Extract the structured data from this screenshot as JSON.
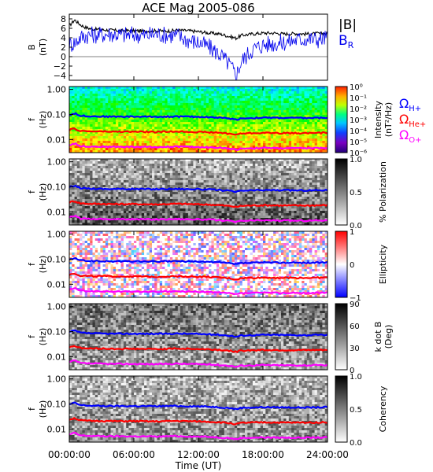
{
  "chart_data": {
    "title": "ACE Mag 2005-086",
    "x_ticks": [
      "00:00:00",
      "06:00:00",
      "12:00:00",
      "18:00:00",
      "24:00:00"
    ],
    "x_label": "Time (UT)",
    "xlim_hours": [
      0,
      24
    ],
    "colors": {
      "b_total": "#000000",
      "b_r": "#0000ee",
      "h_plus": "#0000ff",
      "he_plus": "#ff0000",
      "o_plus": "#ff00ff"
    },
    "panels": [
      {
        "id": "field",
        "type": "line",
        "ylabel": "B",
        "yunit": "(nT)",
        "ylim": [
          -5,
          9
        ],
        "yticks": [
          "8",
          "6",
          "4",
          "2",
          "0",
          "−2",
          "−4"
        ],
        "legend": {
          "total": "|B|",
          "radial": "B",
          "radial_sub": "R"
        },
        "series": [
          {
            "name": "|B|",
            "x_hours": [
              0,
              0.5,
              1,
              1.5,
              2,
              3,
              4,
              5,
              6,
              7,
              8,
              9,
              10,
              11,
              12,
              13,
              14,
              15,
              15.5,
              16,
              17,
              18,
              19,
              20,
              21,
              22,
              23,
              24
            ],
            "values": [
              6.5,
              7.8,
              6.8,
              6.2,
              5.9,
              5.7,
              5.6,
              5.5,
              5.5,
              5.4,
              5.5,
              5.4,
              5.6,
              5.5,
              5.3,
              5.0,
              4.8,
              4.2,
              3.9,
              4.5,
              4.8,
              5.0,
              5.0,
              4.8,
              4.9,
              4.8,
              4.9,
              4.9
            ]
          },
          {
            "name": "BR",
            "x_hours": [
              0,
              0.5,
              1,
              1.5,
              2,
              3,
              4,
              5,
              6,
              7,
              8,
              9,
              10,
              11,
              12,
              13,
              14,
              15,
              15.5,
              16,
              17,
              18,
              19,
              20,
              21,
              22,
              23,
              24
            ],
            "values": [
              2.5,
              3.0,
              4.0,
              4.5,
              4.6,
              4.7,
              4.8,
              4.6,
              4.7,
              4.5,
              4.8,
              4.6,
              4.5,
              3.5,
              3.0,
              2.0,
              0.5,
              -2.0,
              -4.0,
              -1.0,
              1.5,
              2.5,
              2.8,
              3.0,
              3.5,
              3.8,
              3.6,
              4.0
            ]
          }
        ]
      },
      {
        "id": "intensity",
        "type": "heatmap",
        "ylabel": "f",
        "yunit": "(Hz)",
        "yticks": [
          "1.00",
          "0.10",
          "0.01"
        ],
        "ylim": [
          0.003,
          1.3
        ],
        "colorbar": {
          "scale": "rainbow",
          "label": "Intensity",
          "unit": "(nT²/Hz)",
          "ticks": [
            "10⁰",
            "10⁻¹",
            "10⁻²",
            "10⁻³",
            "10⁻⁴",
            "10⁻⁵",
            "10⁻⁶"
          ]
        },
        "gyro_labels": [
          {
            "text": "Ω",
            "sub": "H+"
          },
          {
            "text": "Ω",
            "sub": "He+"
          },
          {
            "text": "Ω",
            "sub": "O+"
          }
        ]
      },
      {
        "id": "polarization",
        "type": "heatmap",
        "ylabel": "f",
        "yunit": "(Hz)",
        "yticks": [
          "1.00",
          "0.10",
          "0.01"
        ],
        "ylim": [
          0.003,
          1.3
        ],
        "colorbar": {
          "scale": "gray",
          "label": "% Polarization",
          "unit": "",
          "ticks": [
            "1.0",
            "0.5",
            "0.0"
          ]
        }
      },
      {
        "id": "ellipticity",
        "type": "heatmap",
        "ylabel": "f",
        "yunit": "(Hz)",
        "yticks": [
          "1.00",
          "0.10",
          "0.01"
        ],
        "ylim": [
          0.003,
          1.3
        ],
        "colorbar": {
          "scale": "bwr",
          "label": "Ellipticity",
          "unit": "",
          "ticks": [
            "1",
            "0",
            "−1"
          ]
        }
      },
      {
        "id": "kdotb",
        "type": "heatmap",
        "ylabel": "f",
        "yunit": "(Hz)",
        "yticks": [
          "1.00",
          "0.10",
          "0.01"
        ],
        "ylim": [
          0.003,
          1.3
        ],
        "colorbar": {
          "scale": "gray",
          "label": "k dot B",
          "unit": "(Deg)",
          "ticks": [
            "90",
            "60",
            "30",
            "0"
          ]
        }
      },
      {
        "id": "coherency",
        "type": "heatmap",
        "ylabel": "f",
        "yunit": "(Hz)",
        "yticks": [
          "1.00",
          "0.10",
          "0.01"
        ],
        "ylim": [
          0.003,
          1.3
        ],
        "colorbar": {
          "scale": "gray",
          "label": "Coherency",
          "unit": "",
          "ticks": [
            "1.0",
            "0.5",
            "0.0"
          ]
        }
      }
    ],
    "gyrofrequency_hz": {
      "x_hours": [
        0,
        0.5,
        1,
        2,
        3,
        4,
        6,
        8,
        10,
        12,
        13,
        14,
        15,
        15.5,
        16,
        18,
        20,
        22,
        24
      ],
      "H+": [
        0.095,
        0.11,
        0.09,
        0.085,
        0.083,
        0.082,
        0.082,
        0.081,
        0.083,
        0.08,
        0.078,
        0.074,
        0.068,
        0.062,
        0.07,
        0.074,
        0.073,
        0.072,
        0.074
      ],
      "He+": [
        0.024,
        0.027,
        0.022,
        0.021,
        0.021,
        0.0205,
        0.0205,
        0.02,
        0.021,
        0.02,
        0.0195,
        0.0185,
        0.017,
        0.0155,
        0.0175,
        0.0185,
        0.018,
        0.018,
        0.0185
      ],
      "O+": [
        0.006,
        0.007,
        0.0055,
        0.0053,
        0.0052,
        0.0051,
        0.0051,
        0.005,
        0.0052,
        0.005,
        0.0049,
        0.0046,
        0.0043,
        0.0039,
        0.0044,
        0.0046,
        0.0045,
        0.0045,
        0.0046
      ]
    }
  }
}
